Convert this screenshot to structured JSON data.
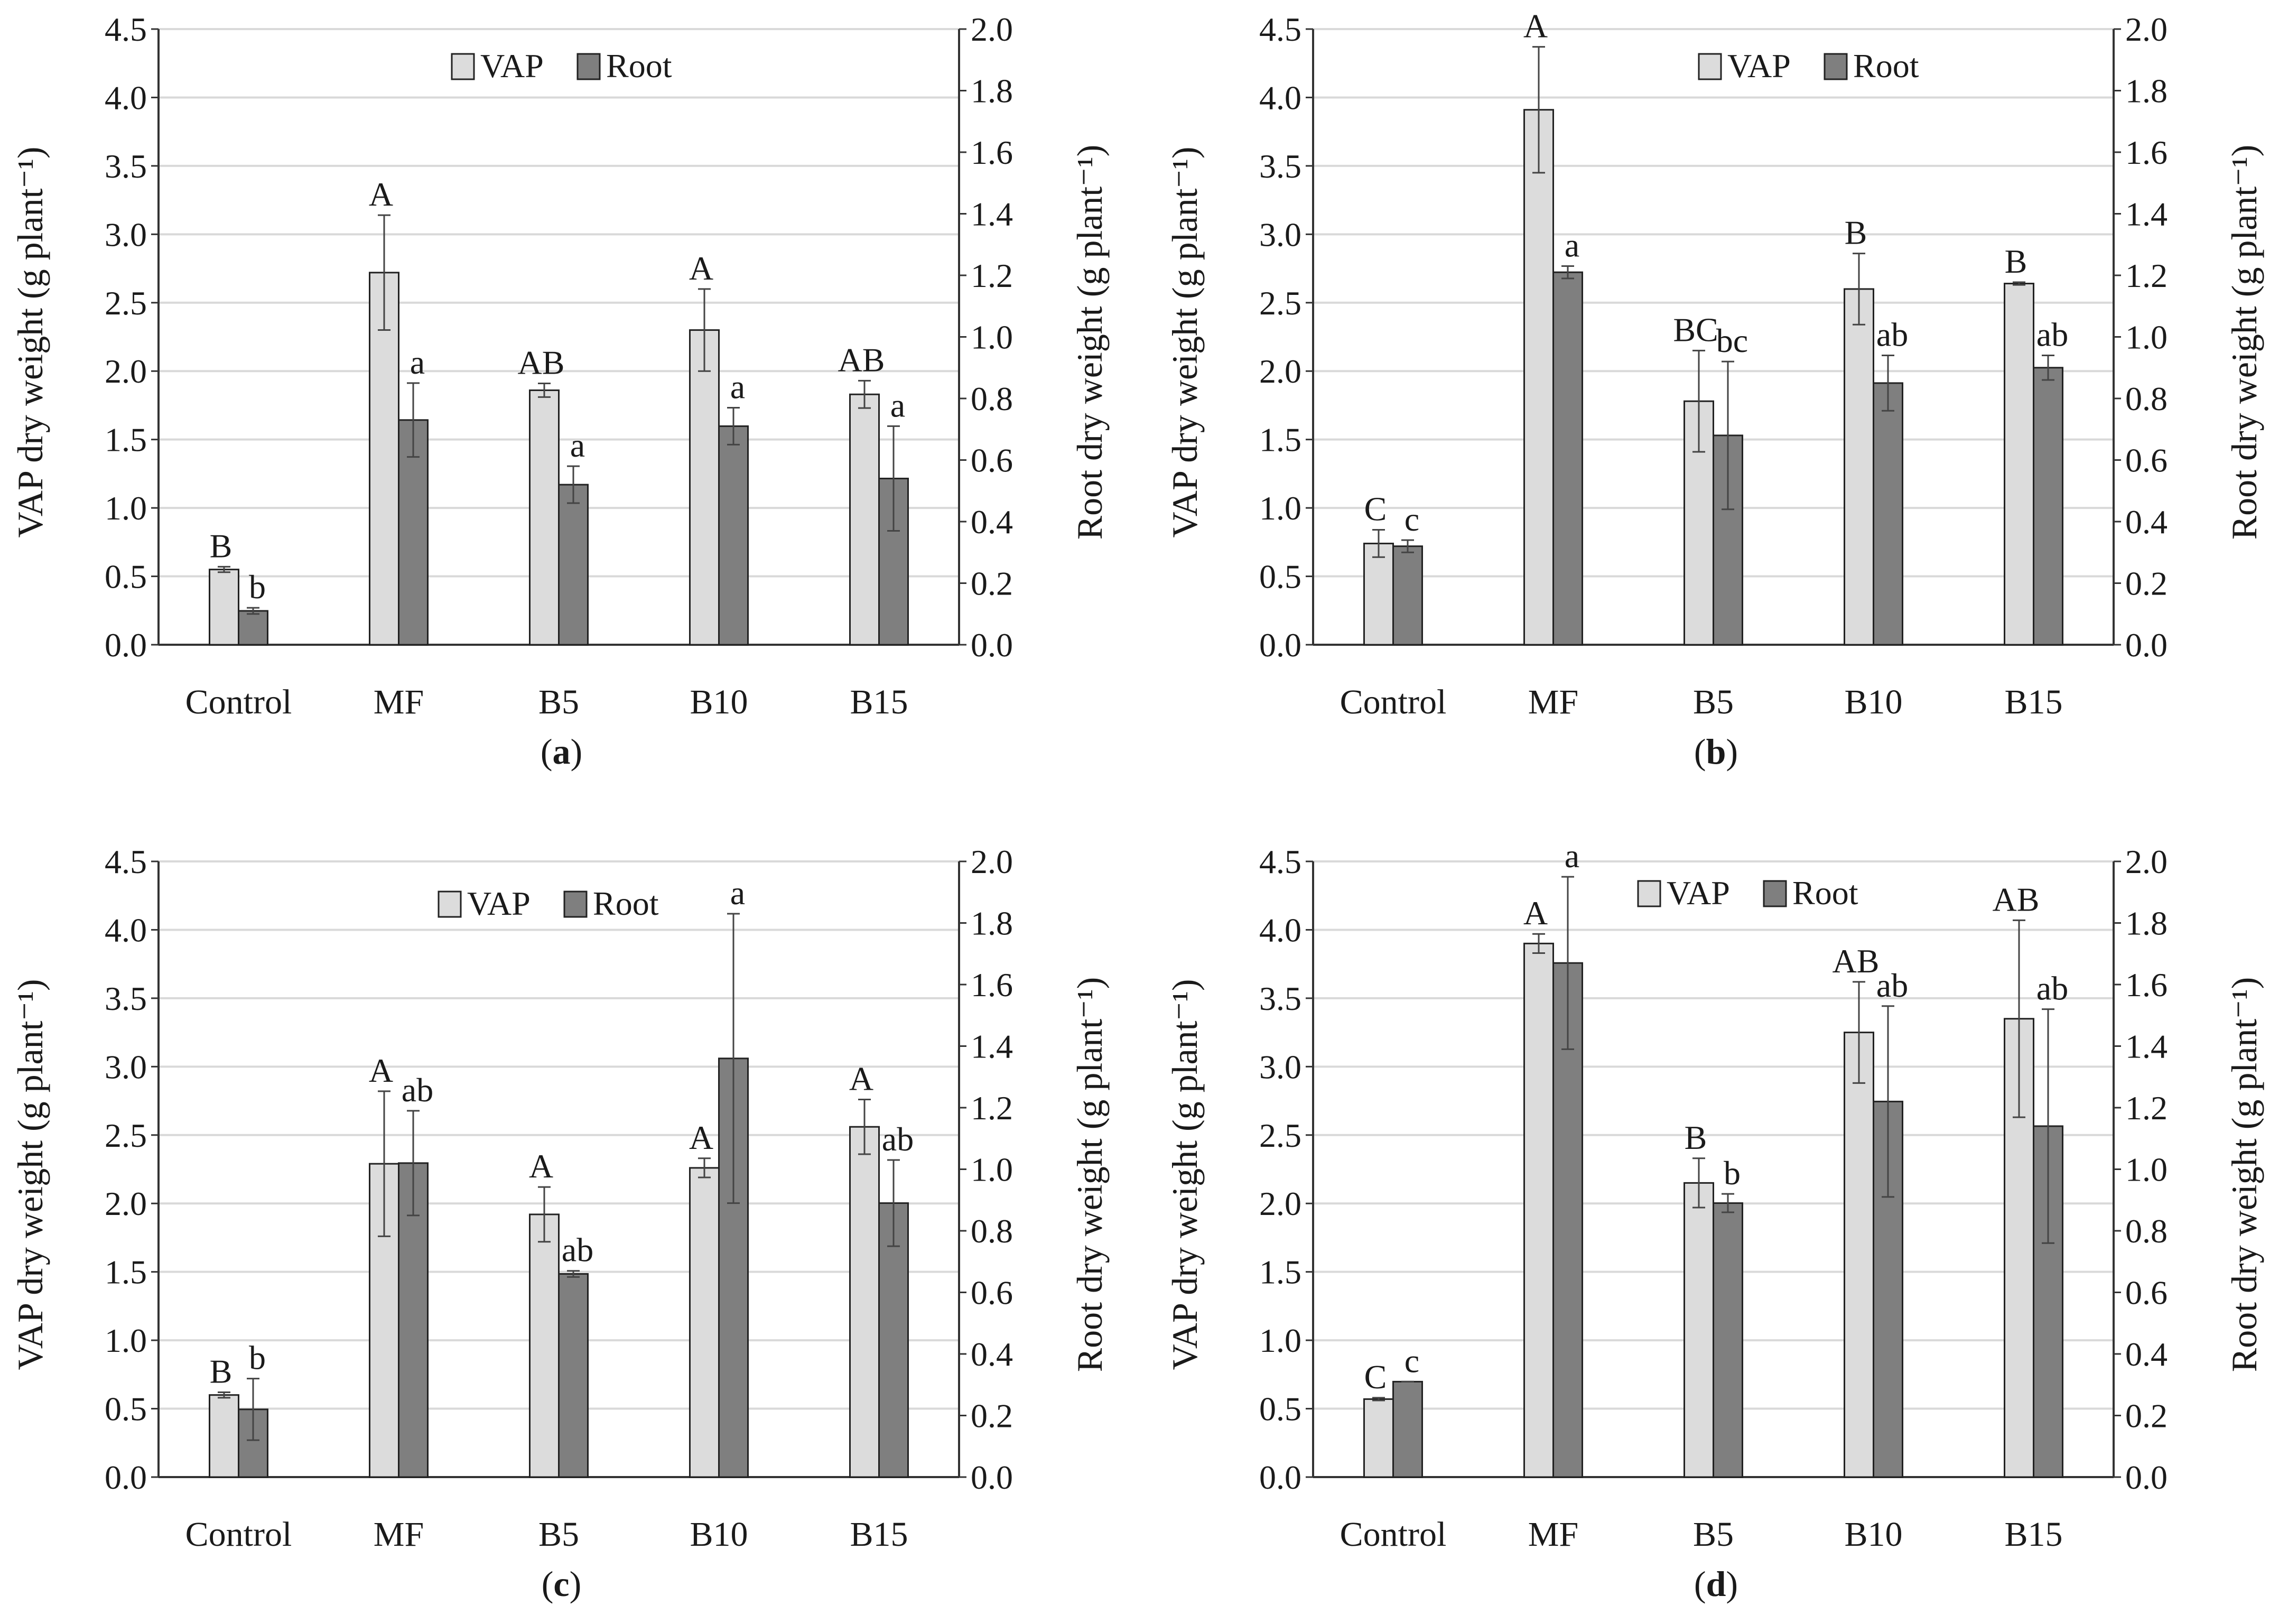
{
  "chart_data": [
    {
      "type": "bar",
      "panel_label": "a",
      "categories": [
        "Control",
        "MF",
        "B5",
        "B10",
        "B15"
      ],
      "ylabel_left": "VAP dry weight (g plant⁻¹)",
      "ylabel_right": "Root dry weight (g plant⁻¹)",
      "ylim_left": [
        0,
        4.5
      ],
      "ylim_right": [
        0,
        2.0
      ],
      "yticks_left": [
        "0.0",
        "0.5",
        "1.0",
        "1.5",
        "2.0",
        "2.5",
        "3.0",
        "3.5",
        "4.0",
        "4.5"
      ],
      "yticks_right": [
        "0.0",
        "0.2",
        "0.4",
        "0.6",
        "0.8",
        "1.0",
        "1.2",
        "1.4",
        "1.6",
        "1.8",
        "2.0"
      ],
      "grid": true,
      "legend": "top-center",
      "series": [
        {
          "name": "VAP",
          "axis": "left",
          "color": "#dcdcdc",
          "values": [
            0.55,
            2.72,
            1.86,
            2.3,
            1.83
          ],
          "errors": [
            0.02,
            0.42,
            0.05,
            0.3,
            0.1
          ],
          "letters": [
            "B",
            "A",
            "AB",
            "A",
            "AB"
          ]
        },
        {
          "name": "Root",
          "axis": "right",
          "color": "#7f7f7f",
          "values": [
            0.11,
            0.73,
            0.52,
            0.71,
            0.54
          ],
          "errors": [
            0.01,
            0.12,
            0.06,
            0.06,
            0.17
          ],
          "letters": [
            "b",
            "a",
            "a",
            "a",
            "a"
          ]
        }
      ]
    },
    {
      "type": "bar",
      "panel_label": "b",
      "categories": [
        "Control",
        "MF",
        "B5",
        "B10",
        "B15"
      ],
      "ylabel_left": "VAP dry weight (g plant⁻¹)",
      "ylabel_right": "Root dry weight (g plant⁻¹)",
      "ylim_left": [
        0,
        4.5
      ],
      "ylim_right": [
        0,
        2.0
      ],
      "yticks_left": [
        "0.0",
        "0.5",
        "1.0",
        "1.5",
        "2.0",
        "2.5",
        "3.0",
        "3.5",
        "4.0",
        "4.5"
      ],
      "yticks_right": [
        "0.0",
        "0.2",
        "0.4",
        "0.6",
        "0.8",
        "1.0",
        "1.2",
        "1.4",
        "1.6",
        "1.8",
        "2.0"
      ],
      "grid": true,
      "legend": "top-right",
      "series": [
        {
          "name": "VAP",
          "axis": "left",
          "color": "#dcdcdc",
          "values": [
            0.74,
            3.91,
            1.78,
            2.6,
            2.64
          ],
          "errors": [
            0.1,
            0.46,
            0.37,
            0.26,
            0.01
          ],
          "letters": [
            "C",
            "A",
            "BC",
            "B",
            "B"
          ]
        },
        {
          "name": "Root",
          "axis": "right",
          "color": "#7f7f7f",
          "values": [
            0.32,
            1.21,
            0.68,
            0.85,
            0.9
          ],
          "errors": [
            0.02,
            0.02,
            0.24,
            0.09,
            0.04
          ],
          "letters": [
            "c",
            "a",
            "bc",
            "ab",
            "ab"
          ]
        }
      ]
    },
    {
      "type": "bar",
      "panel_label": "c",
      "categories": [
        "Control",
        "MF",
        "B5",
        "B10",
        "B15"
      ],
      "ylabel_left": "VAP dry weight (g plant⁻¹)",
      "ylabel_right": "Root dry weight (g plant⁻¹)",
      "ylim_left": [
        0,
        4.5
      ],
      "ylim_right": [
        0,
        2.0
      ],
      "yticks_left": [
        "0.0",
        "0.5",
        "1.0",
        "1.5",
        "2.0",
        "2.5",
        "3.0",
        "3.5",
        "4.0",
        "4.5"
      ],
      "yticks_right": [
        "0.0",
        "0.2",
        "0.4",
        "0.6",
        "0.8",
        "1.0",
        "1.2",
        "1.4",
        "1.6",
        "1.8",
        "2.0"
      ],
      "grid": true,
      "legend": "top-center",
      "series": [
        {
          "name": "VAP",
          "axis": "left",
          "color": "#dcdcdc",
          "values": [
            0.6,
            2.29,
            1.92,
            2.26,
            2.56
          ],
          "errors": [
            0.02,
            0.53,
            0.2,
            0.07,
            0.2
          ],
          "letters": [
            "B",
            "A",
            "A",
            "A",
            "A"
          ]
        },
        {
          "name": "Root",
          "axis": "right",
          "color": "#7f7f7f",
          "values": [
            0.22,
            1.02,
            0.66,
            1.36,
            0.89
          ],
          "errors": [
            0.1,
            0.17,
            0.01,
            0.47,
            0.14
          ],
          "letters": [
            "b",
            "ab",
            "ab",
            "a",
            "ab"
          ]
        }
      ]
    },
    {
      "type": "bar",
      "panel_label": "d",
      "categories": [
        "Control",
        "MF",
        "B5",
        "B10",
        "B15"
      ],
      "ylabel_left": "VAP dry weight (g plant⁻¹)",
      "ylabel_right": "Root dry weight (g plant⁻¹)",
      "ylim_left": [
        0,
        4.5
      ],
      "ylim_right": [
        0,
        2.0
      ],
      "yticks_left": [
        "0.0",
        "0.5",
        "1.0",
        "1.5",
        "2.0",
        "2.5",
        "3.0",
        "3.5",
        "4.0",
        "4.5"
      ],
      "yticks_right": [
        "0.0",
        "0.2",
        "0.4",
        "0.6",
        "0.8",
        "1.0",
        "1.2",
        "1.4",
        "1.6",
        "1.8",
        "2.0"
      ],
      "grid": true,
      "legend": "top-center",
      "series": [
        {
          "name": "VAP",
          "axis": "left",
          "color": "#dcdcdc",
          "values": [
            0.57,
            3.9,
            2.15,
            3.25,
            3.35
          ],
          "errors": [
            0.01,
            0.07,
            0.18,
            0.37,
            0.72
          ],
          "letters": [
            "C",
            "A",
            "B",
            "AB",
            "AB"
          ]
        },
        {
          "name": "Root",
          "axis": "right",
          "color": "#7f7f7f",
          "values": [
            0.31,
            1.67,
            0.89,
            1.22,
            1.14
          ],
          "errors": [
            0.0,
            0.28,
            0.03,
            0.31,
            0.38
          ],
          "letters": [
            "c",
            "a",
            "b",
            "ab",
            "ab"
          ]
        }
      ]
    }
  ]
}
